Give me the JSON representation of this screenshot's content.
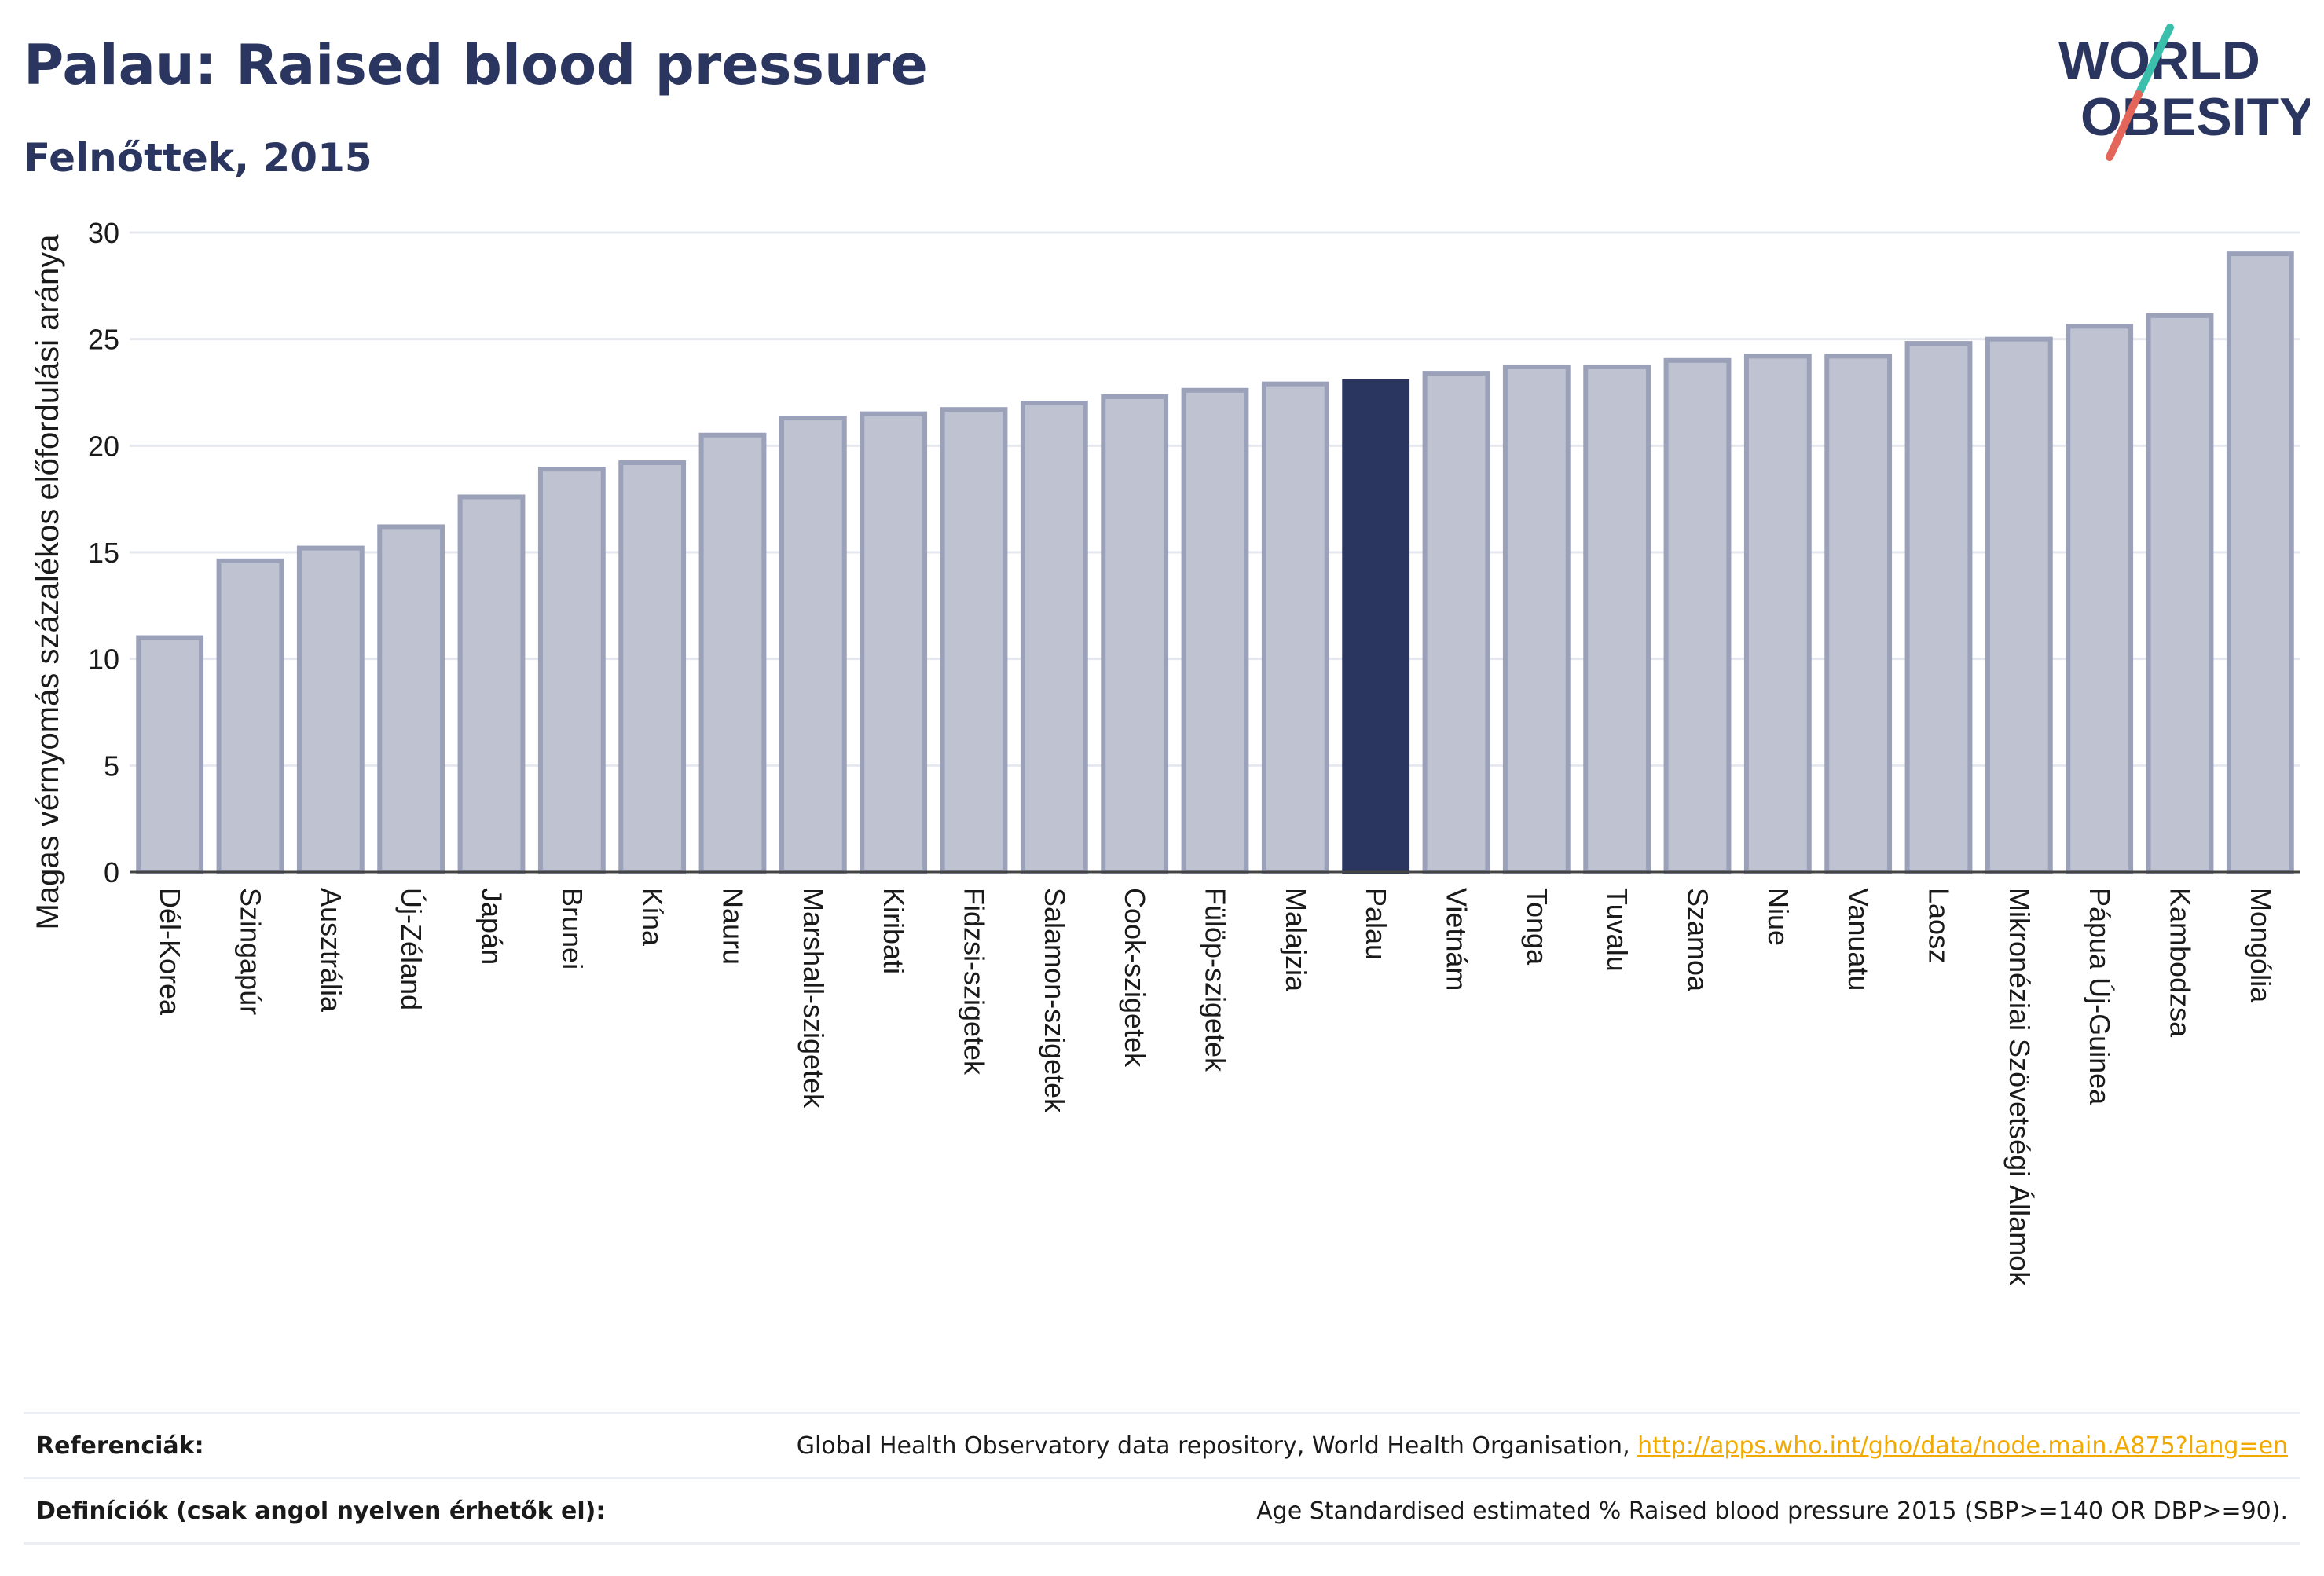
{
  "header": {
    "title": "Palau: Raised blood pressure",
    "subtitle": "Felnőttek, 2015"
  },
  "logo": {
    "line1": "WORLD",
    "line2": "OBESITY"
  },
  "colors": {
    "bar": "#bfc3d1",
    "bar_edge": "#9aa1b9",
    "highlight": "#2b3660",
    "text": "#2b3660",
    "grid": "#e6e8ef",
    "link": "#f2a900"
  },
  "chart_data": {
    "type": "bar",
    "ylabel": "Magas vérnyomás százalékos előfordulási aránya",
    "ylim": [
      0,
      30
    ],
    "yticks": [
      0,
      5,
      10,
      15,
      20,
      25,
      30
    ],
    "grid": true,
    "highlight": "Palau",
    "categories": [
      "Dél-Korea",
      "Szingapúr",
      "Ausztrália",
      "Új-Zéland",
      "Japán",
      "Brunei",
      "Kína",
      "Nauru",
      "Marshall-szigetek",
      "Kiribati",
      "Fidzsi-szigetek",
      "Salamon-szigetek",
      "Cook-szigetek",
      "Fülöp-szigetek",
      "Malajzia",
      "Palau",
      "Vietnám",
      "Tonga",
      "Tuvalu",
      "Szamoa",
      "Niue",
      "Vanuatu",
      "Laosz",
      "Mikronéziai Szövetségi Államok",
      "Pápua Új-Guinea",
      "Kambodzsa",
      "Mongólia"
    ],
    "values": [
      11.0,
      14.6,
      15.2,
      16.2,
      17.6,
      18.9,
      19.2,
      20.5,
      21.3,
      21.5,
      21.7,
      22.0,
      22.3,
      22.6,
      22.9,
      23.0,
      23.4,
      23.7,
      23.7,
      24.0,
      24.2,
      24.2,
      24.8,
      25.0,
      25.6,
      26.1,
      29.0
    ]
  },
  "footer": {
    "refs_label": "Referenciák:",
    "refs_text": "Global Health Observatory data repository, World Health Organisation, ",
    "refs_link": "http://apps.who.int/gho/data/node.main.A875?lang=en",
    "defs_label": "Definíciók (csak angol nyelven érhetők el):",
    "defs_text": "Age Standardised estimated % Raised blood pressure 2015 (SBP>=140 OR DBP>=90)."
  }
}
